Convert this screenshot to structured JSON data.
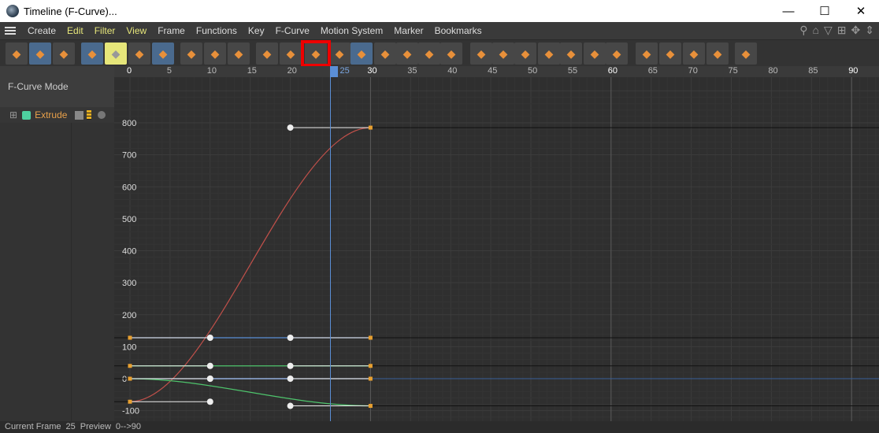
{
  "window": {
    "title": "Timeline (F-Curve)...",
    "minimize": "—",
    "maximize": "☐",
    "close": "✕"
  },
  "menu": [
    {
      "label": "Create"
    },
    {
      "label": "Edit",
      "hl": true
    },
    {
      "label": "Filter",
      "hl": true
    },
    {
      "label": "View",
      "hl": true
    },
    {
      "label": "Frame"
    },
    {
      "label": "Functions"
    },
    {
      "label": "Key"
    },
    {
      "label": "F-Curve"
    },
    {
      "label": "Motion System"
    },
    {
      "label": "Marker"
    },
    {
      "label": "Bookmarks"
    }
  ],
  "menu_right_icons": [
    "search-icon",
    "home-icon",
    "filter-icon",
    "add-icon",
    "move-icon",
    "fit-icon"
  ],
  "toolbar": [
    {
      "icon": "key-mode-icon",
      "x": 7
    },
    {
      "icon": "fcurve-mode-icon",
      "x": 37,
      "on": true
    },
    {
      "icon": "motion-mode-icon",
      "x": 67
    },
    {
      "icon": "auto-key-icon",
      "x": 103,
      "on": true
    },
    {
      "icon": "solo-icon",
      "x": 133,
      "yellow": true
    },
    {
      "icon": "folder-key-icon",
      "x": 163
    },
    {
      "icon": "folder-key-link-icon",
      "x": 193,
      "on": true
    },
    {
      "icon": "waveform-select-icon",
      "x": 229
    },
    {
      "icon": "waveform-icon",
      "x": 259
    },
    {
      "icon": "bracket-icon",
      "x": 289
    },
    {
      "icon": "add-key-icon",
      "x": 325
    },
    {
      "icon": "add-keys-icon",
      "x": 355
    },
    {
      "icon": "spline-interp-icon",
      "x": 387
    },
    {
      "icon": "step-interp-icon",
      "x": 417
    },
    {
      "icon": "ease-interp-icon",
      "x": 445,
      "on": true
    },
    {
      "icon": "ease-icon",
      "x": 475
    },
    {
      "icon": "ease-in-out-icon",
      "x": 503
    },
    {
      "icon": "ease-out-icon",
      "x": 531
    },
    {
      "icon": "ease-in-icon",
      "x": 559
    },
    {
      "icon": "zero-angle-icon",
      "x": 597
    },
    {
      "icon": "zero-length-icon",
      "x": 625
    },
    {
      "icon": "auto-tangent-icon",
      "x": 653
    },
    {
      "icon": "lock-angle-icon",
      "x": 683
    },
    {
      "icon": "lock-length-icon",
      "x": 711
    },
    {
      "icon": "lock-time-icon",
      "x": 741
    },
    {
      "icon": "lock-value-icon",
      "x": 769
    },
    {
      "icon": "select-keys-icon",
      "x": 807
    },
    {
      "icon": "bake-icon",
      "x": 837
    },
    {
      "icon": "atom-help-icon",
      "x": 867
    },
    {
      "icon": "snapshot-icon",
      "x": 897
    },
    {
      "icon": "layer-icon",
      "x": 933
    }
  ],
  "left_panel": {
    "mode": "F-Curve Mode",
    "object": "Extrude",
    "expand": "⊞"
  },
  "ruler": {
    "ticks": [
      0,
      5,
      10,
      15,
      20,
      25,
      30,
      35,
      40,
      45,
      50,
      55,
      60,
      65,
      70,
      75,
      80,
      85,
      90
    ],
    "current_frame": 25
  },
  "value_axis": [
    800,
    700,
    600,
    500,
    400,
    300,
    200,
    100,
    0,
    -100
  ],
  "colors": {
    "red": "#c0504a",
    "blue": "#5b8fd6",
    "green": "#4ec46c",
    "light_blue": "#a8c8ff",
    "playhead": "#5b8fd6",
    "key": "#e8a030",
    "object": "#e8a04a"
  },
  "curves": [
    {
      "color": "red",
      "keys": [
        [
          0,
          -72
        ],
        [
          30,
          785
        ]
      ],
      "handles": [
        [
          [
            10,
            -72
          ]
        ],
        [
          [
            20,
            785
          ]
        ]
      ]
    },
    {
      "color": "blue",
      "keys": [
        [
          0,
          128
        ],
        [
          30,
          128
        ]
      ],
      "handles": [
        [
          [
            10,
            128
          ]
        ],
        [
          [
            20,
            128
          ]
        ]
      ]
    },
    {
      "color": "green",
      "keys": [
        [
          0,
          40
        ],
        [
          30,
          40
        ]
      ],
      "handles": [
        [
          [
            10,
            40
          ]
        ],
        [
          [
            20,
            40
          ]
        ]
      ]
    },
    {
      "color": "light_blue",
      "keys": [
        [
          0,
          0
        ],
        [
          30,
          0
        ]
      ],
      "handles": [
        [
          [
            10,
            0
          ]
        ],
        [
          [
            20,
            0
          ]
        ]
      ]
    },
    {
      "color": "green",
      "keys": [
        [
          0,
          0
        ],
        [
          30,
          -85
        ]
      ],
      "handles": [
        [
          [
            10,
            0
          ]
        ],
        [
          [
            20,
            -85
          ]
        ]
      ]
    }
  ],
  "status": {
    "current_frame_label": "Current Frame",
    "current_frame": "25",
    "preview_label": "Preview",
    "preview": "0-->90"
  }
}
